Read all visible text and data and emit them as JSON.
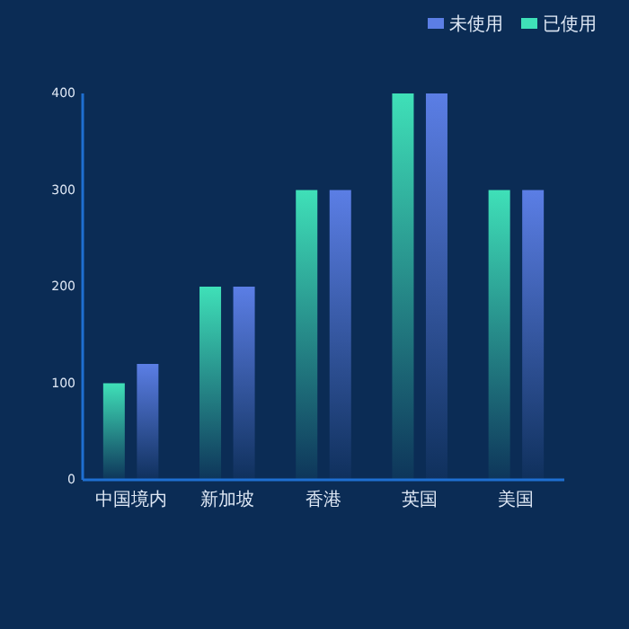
{
  "chart_data": {
    "type": "bar",
    "categories": [
      "中国境内",
      "新加坡",
      "香港",
      "英国",
      "美国"
    ],
    "series": [
      {
        "name": "已使用",
        "color": "#3fe0b8",
        "values": [
          100,
          200,
          300,
          400,
          300
        ]
      },
      {
        "name": "未使用",
        "color": "#5b7ee5",
        "values": [
          120,
          200,
          300,
          400,
          300
        ]
      }
    ],
    "ylim": [
      0,
      400
    ],
    "yticks": [
      0,
      100,
      200,
      300,
      400
    ],
    "grid": false,
    "legend": "top right"
  }
}
